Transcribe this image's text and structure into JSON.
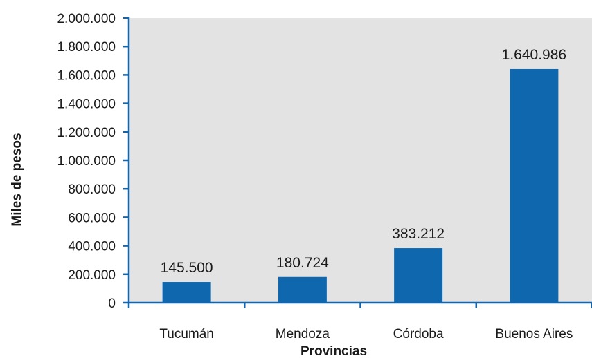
{
  "chart_data": {
    "type": "bar",
    "categories": [
      "Tucumán",
      "Mendoza",
      "Córdoba",
      "Buenos Aires"
    ],
    "values": [
      145500,
      180724,
      383212,
      1640986
    ],
    "value_labels": [
      "145.500",
      "180.724",
      "383.212",
      "1.640.986"
    ],
    "xlabel": "Provincias",
    "ylabel": "Miles de pesos",
    "ylim": [
      0,
      2000000
    ],
    "ytick_values": [
      0,
      200000,
      400000,
      600000,
      800000,
      1000000,
      1200000,
      1400000,
      1600000,
      1800000,
      2000000
    ],
    "ytick_labels": [
      "0",
      "200.000",
      "400.000",
      "600.000",
      "800.000",
      "1.000.000",
      "1.200.000",
      "1.400.000",
      "1.600.000",
      "1.800.000",
      "2.000.000"
    ],
    "grid": false,
    "colors": {
      "bar": "#0f68ad",
      "plot_background": "#e3e3e3",
      "axis": "#1565ad"
    }
  }
}
